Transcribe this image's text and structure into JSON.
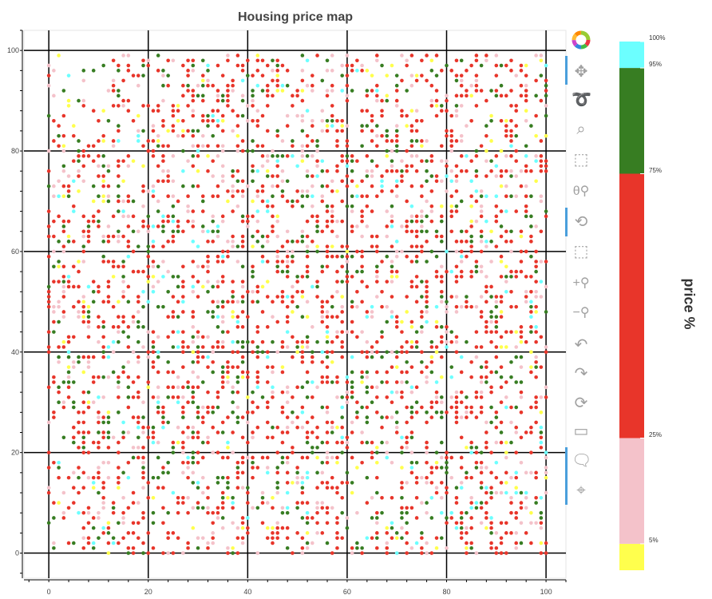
{
  "chart_data": {
    "type": "scatter",
    "title": "Housing price map",
    "xlim": [
      -5,
      104
    ],
    "ylim": [
      -5,
      104
    ],
    "x_ticks": [
      0,
      20,
      40,
      60,
      80,
      100
    ],
    "y_ticks": [
      0,
      20,
      40,
      60,
      80,
      100
    ],
    "minor_tick_step": 4,
    "grid": true,
    "colorbar": {
      "title": "price %",
      "location": "right",
      "bands": [
        {
          "from": 0,
          "to": 5,
          "color": "#ffff4d",
          "key": "Y"
        },
        {
          "from": 5,
          "to": 25,
          "color": "#f4c2ca",
          "key": "P"
        },
        {
          "from": 25,
          "to": 75,
          "color": "#e8352a",
          "key": "R"
        },
        {
          "from": 75,
          "to": 95,
          "color": "#377d22",
          "key": "G"
        },
        {
          "from": 95,
          "to": 100,
          "color": "#6cffff",
          "key": "C"
        }
      ],
      "tick_labels": [
        "5%",
        "25%",
        "75%",
        "95%",
        "100%"
      ],
      "tick_values": [
        5,
        25,
        75,
        95,
        100
      ]
    },
    "points": [
      [
        2,
        99,
        "Y"
      ],
      [
        15,
        99,
        "P"
      ],
      [
        16,
        99,
        "P"
      ],
      [
        22,
        99,
        "G"
      ],
      [
        13,
        98,
        "R"
      ],
      [
        19,
        98,
        "R"
      ],
      [
        20,
        98,
        "P"
      ],
      [
        24,
        98,
        "R"
      ],
      [
        25,
        98,
        "P"
      ],
      [
        28,
        98,
        "R"
      ],
      [
        29,
        98,
        "R"
      ],
      [
        0,
        97,
        "P"
      ],
      [
        11,
        97,
        "G"
      ],
      [
        14,
        97,
        "R"
      ],
      [
        16,
        97,
        "R"
      ],
      [
        19,
        97,
        "G"
      ],
      [
        20,
        97,
        "R"
      ],
      [
        27,
        97,
        "R"
      ],
      [
        29,
        97,
        "G"
      ],
      [
        1,
        96,
        "P"
      ],
      [
        7,
        96,
        "G"
      ],
      [
        9,
        96,
        "G"
      ],
      [
        14,
        96,
        "G"
      ],
      [
        16,
        96,
        "R"
      ],
      [
        22,
        96,
        "R"
      ],
      [
        23,
        96,
        "G"
      ],
      [
        28,
        96,
        "R"
      ],
      [
        29,
        96,
        "P"
      ],
      [
        0,
        95,
        "R"
      ],
      [
        4,
        95,
        "C"
      ],
      [
        17,
        95,
        "R"
      ],
      [
        18,
        95,
        "R"
      ],
      [
        19,
        95,
        "G"
      ],
      [
        23,
        95,
        "P"
      ],
      [
        24,
        95,
        "G"
      ],
      [
        28,
        95,
        "R"
      ],
      [
        7,
        94,
        "P"
      ],
      [
        13,
        94,
        "P"
      ],
      [
        15,
        94,
        "R"
      ],
      [
        0,
        93,
        "P"
      ],
      [
        13,
        93,
        "R"
      ],
      [
        18,
        93,
        "P"
      ],
      [
        23,
        93,
        "G"
      ],
      [
        24,
        93,
        "R"
      ],
      [
        27,
        93,
        "R"
      ],
      [
        28,
        93,
        "G"
      ],
      [
        30,
        93,
        "P"
      ],
      [
        3,
        92,
        "G"
      ],
      [
        12,
        92,
        "P"
      ],
      [
        13,
        92,
        "R"
      ],
      [
        14,
        92,
        "G"
      ],
      [
        28,
        92,
        "R"
      ],
      [
        29,
        92,
        "R"
      ],
      [
        1,
        91,
        "P"
      ],
      [
        14,
        91,
        "G"
      ],
      [
        27,
        91,
        "R"
      ],
      [
        29,
        91,
        "R"
      ],
      [
        30,
        91,
        "G"
      ],
      [
        4,
        90,
        "Y"
      ],
      [
        6,
        90,
        "G"
      ],
      [
        7,
        90,
        "P"
      ],
      [
        15,
        90,
        "R"
      ],
      [
        16,
        90,
        "R"
      ],
      [
        23,
        90,
        "P"
      ],
      [
        29,
        90,
        "R"
      ],
      [
        4,
        89,
        "Y"
      ],
      [
        7,
        89,
        "R"
      ],
      [
        13,
        89,
        "R"
      ],
      [
        14,
        89,
        "R"
      ],
      [
        15,
        89,
        "P"
      ],
      [
        19,
        89,
        "R"
      ],
      [
        20,
        89,
        "R"
      ],
      [
        22,
        89,
        "R"
      ],
      [
        25,
        89,
        "R"
      ],
      [
        26,
        89,
        "Y"
      ],
      [
        28,
        89,
        "R"
      ],
      [
        9,
        88,
        "R"
      ],
      [
        11,
        88,
        "Y"
      ],
      [
        16,
        88,
        "R"
      ],
      [
        21,
        88,
        "R"
      ],
      [
        22,
        88,
        "R"
      ],
      [
        25,
        88,
        "R"
      ],
      [
        26,
        88,
        "R"
      ],
      [
        29,
        88,
        "P"
      ],
      [
        0,
        87,
        "G"
      ],
      [
        3,
        87,
        "R"
      ],
      [
        18,
        87,
        "Y"
      ],
      [
        25,
        87,
        "R"
      ],
      [
        29,
        87,
        "R"
      ],
      [
        1,
        86,
        "R"
      ],
      [
        10,
        86,
        "R"
      ],
      [
        12,
        86,
        "G"
      ],
      [
        17,
        86,
        "R"
      ],
      [
        23,
        86,
        "R"
      ],
      [
        26,
        86,
        "Y"
      ],
      [
        27,
        86,
        "R"
      ],
      [
        2,
        85,
        "R"
      ],
      [
        5,
        85,
        "Y"
      ],
      [
        14,
        85,
        "G"
      ],
      [
        21,
        85,
        "P"
      ],
      [
        23,
        85,
        "R"
      ],
      [
        25,
        85,
        "R"
      ],
      [
        14,
        84,
        "R"
      ],
      [
        18,
        84,
        "P"
      ],
      [
        19,
        84,
        "G"
      ],
      [
        21,
        84,
        "R"
      ],
      [
        24,
        84,
        "Y"
      ],
      [
        25,
        84,
        "R"
      ],
      [
        27,
        84,
        "Y"
      ],
      [
        28,
        84,
        "R"
      ],
      [
        29,
        84,
        "G"
      ],
      [
        30,
        84,
        "G"
      ],
      [
        2,
        83,
        "G"
      ],
      [
        3,
        83,
        "R"
      ],
      [
        5,
        83,
        "R"
      ],
      [
        11,
        83,
        "R"
      ],
      [
        18,
        83,
        "C"
      ],
      [
        22,
        83,
        "P"
      ],
      [
        26,
        83,
        "P"
      ],
      [
        27,
        83,
        "R"
      ],
      [
        29,
        83,
        "R"
      ],
      [
        1,
        82,
        "R"
      ],
      [
        6,
        82,
        "G"
      ],
      [
        10,
        82,
        "R"
      ],
      [
        11,
        82,
        "Y"
      ],
      [
        13,
        82,
        "R"
      ],
      [
        14,
        82,
        "C"
      ],
      [
        18,
        82,
        "C"
      ],
      [
        20,
        82,
        "R"
      ],
      [
        21,
        82,
        "R"
      ],
      [
        22,
        82,
        "Y"
      ],
      [
        2,
        81,
        "R"
      ],
      [
        3,
        81,
        "Y"
      ],
      [
        8,
        81,
        "R"
      ],
      [
        9,
        81,
        "R"
      ],
      [
        13,
        81,
        "P"
      ],
      [
        19,
        81,
        "R"
      ],
      [
        22,
        81,
        "G"
      ],
      [
        23,
        81,
        "R"
      ],
      [
        24,
        81,
        "R"
      ],
      [
        29,
        81,
        "P"
      ],
      [
        30,
        81,
        "R"
      ],
      [
        0,
        80,
        "P"
      ],
      [
        3,
        80,
        "P"
      ],
      [
        6,
        80,
        "G"
      ],
      [
        7,
        80,
        "R"
      ],
      [
        20,
        80,
        "R"
      ],
      [
        21,
        80,
        "R"
      ],
      [
        27,
        80,
        "G"
      ],
      [
        30,
        80,
        "C"
      ]
    ]
  },
  "toolbar": {
    "logo": "bokeh-logo",
    "tools": [
      "pan-icon",
      "lasso-select-icon",
      "box-zoom-icon",
      "box-select-icon",
      "wheel-zoom-icon",
      "zoom-in-out-icon",
      "poly-select-icon",
      "zoom-in-icon",
      "zoom-out-icon",
      "undo-icon",
      "redo-icon",
      "reset-icon",
      "save-icon",
      "hover-icon",
      "crosshair-icon"
    ]
  }
}
